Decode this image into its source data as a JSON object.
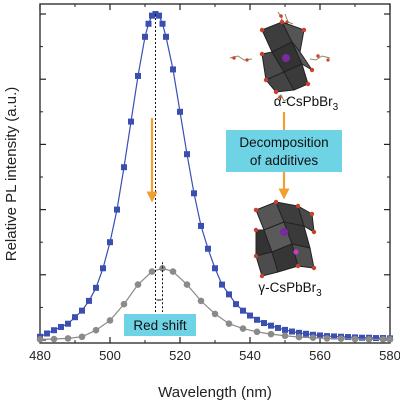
{
  "chart_data": {
    "type": "line",
    "xlabel": "Wavelength (nm)",
    "ylabel": "Relative PL intensity (a.u.)",
    "xlim": [
      480,
      580
    ],
    "ylim": [
      0,
      1.05
    ],
    "x_ticks": [
      "480",
      "500",
      "520",
      "540",
      "560",
      "580"
    ],
    "y_tick_labels": "none",
    "grid": false,
    "legend": "none",
    "series": [
      {
        "color": "#3a4fb0",
        "marker": "square",
        "peak_x": 513,
        "peak_y": 1.0,
        "fwhm_nm": 22,
        "baseline": 0.0,
        "x": [
          480,
          482,
          484,
          486,
          488,
          490,
          492,
          494,
          496,
          498,
          500,
          502,
          504,
          506,
          508,
          510,
          511,
          512,
          513,
          514,
          515,
          516,
          518,
          520,
          522,
          524,
          526,
          528,
          530,
          532,
          534,
          536,
          538,
          540,
          542,
          544,
          546,
          548,
          550,
          552,
          554,
          556,
          558,
          560,
          562,
          564,
          566,
          568,
          570,
          572,
          574,
          576,
          578,
          580
        ],
        "y": [
          0.01,
          0.02,
          0.03,
          0.04,
          0.05,
          0.07,
          0.09,
          0.12,
          0.16,
          0.22,
          0.3,
          0.4,
          0.53,
          0.67,
          0.81,
          0.93,
          0.97,
          0.995,
          1.0,
          0.995,
          0.97,
          0.93,
          0.83,
          0.7,
          0.57,
          0.45,
          0.35,
          0.28,
          0.22,
          0.17,
          0.14,
          0.11,
          0.09,
          0.075,
          0.062,
          0.052,
          0.044,
          0.037,
          0.031,
          0.026,
          0.022,
          0.019,
          0.016,
          0.014,
          0.012,
          0.011,
          0.01,
          0.009,
          0.008,
          0.007,
          0.007,
          0.006,
          0.006,
          0.005
        ]
      },
      {
        "color": "#8a8a86",
        "marker": "circle",
        "peak_x": 515,
        "peak_y": 0.22,
        "x": [
          480,
          484,
          488,
          492,
          496,
          500,
          504,
          508,
          512,
          515,
          518,
          522,
          526,
          530,
          534,
          538,
          542,
          546,
          550,
          554,
          558,
          562,
          566,
          570,
          574,
          578,
          580
        ],
        "y": [
          0.002,
          0.003,
          0.005,
          0.01,
          0.03,
          0.06,
          0.11,
          0.17,
          0.21,
          0.22,
          0.21,
          0.17,
          0.12,
          0.08,
          0.05,
          0.035,
          0.025,
          0.018,
          0.013,
          0.009,
          0.007,
          0.005,
          0.004,
          0.003,
          0.002,
          0.002,
          0.002
        ]
      }
    ],
    "annotations": [
      {
        "text": "Red shift",
        "style": "callout",
        "color": "#6fd3e6"
      },
      {
        "text": "Decomposition of additives",
        "lines": [
          "Decomposition",
          "of additives"
        ],
        "style": "callout",
        "color": "#6fd3e6"
      },
      {
        "text": "α-CsPbBr3",
        "phase": "α",
        "formula": "CsPbBr",
        "subscript": "3"
      },
      {
        "text": "γ-CsPbBr3",
        "phase": "γ",
        "formula": "CsPbBr",
        "subscript": "3"
      }
    ],
    "arrow_color": "#f0a030"
  }
}
